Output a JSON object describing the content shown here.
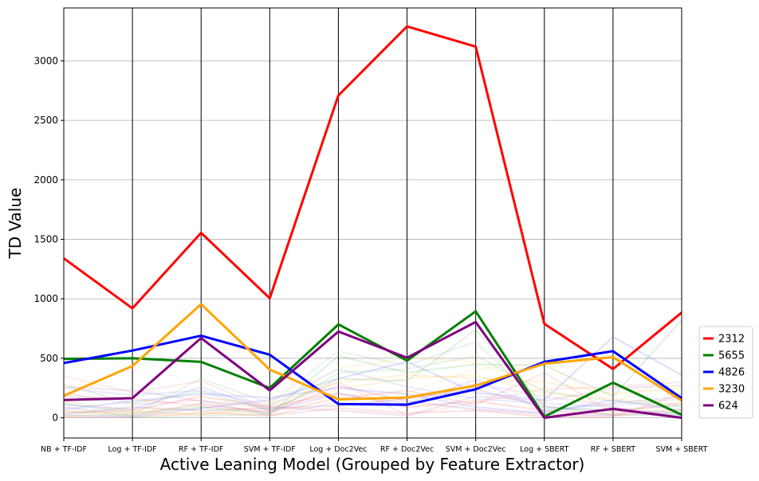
{
  "chart_data": {
    "type": "line",
    "subtype": "parallel-coordinates",
    "title": "",
    "xlabel": "Active Leaning Model (Grouped by Feature Extractor)",
    "ylabel": "TD Value",
    "categories": [
      "NB + TF-IDF",
      "Log + TF-IDF",
      "RF + TF-IDF",
      "SVM + TF-IDF",
      "Log + Doc2Vec",
      "RF + Doc2Vec",
      "SVM + Doc2Vec",
      "Log + SBERT",
      "RF + SBERT",
      "SVM + SBERT"
    ],
    "ylim": [
      -170,
      3445
    ],
    "yticks": [
      0,
      500,
      1000,
      1500,
      2000,
      2500,
      3000
    ],
    "ytick_labels": [
      "0",
      "500",
      "1000",
      "1500",
      "2000",
      "2500",
      "3000"
    ],
    "grid": "horizontal",
    "legend": {
      "position": "right",
      "entries": [
        "2312",
        "5655",
        "4826",
        "3230",
        "624"
      ]
    },
    "series": [
      {
        "name": "2312",
        "color": "#ff0000",
        "values": [
          1340,
          920,
          1555,
          1005,
          2710,
          3290,
          3120,
          790,
          410,
          885
        ]
      },
      {
        "name": "5655",
        "color": "#008000",
        "values": [
          495,
          500,
          470,
          250,
          785,
          480,
          895,
          10,
          295,
          25
        ]
      },
      {
        "name": "4826",
        "color": "#0000ff",
        "values": [
          460,
          565,
          690,
          530,
          115,
          110,
          240,
          470,
          560,
          165
        ]
      },
      {
        "name": "3230",
        "color": "#ffa500",
        "values": [
          185,
          435,
          955,
          405,
          155,
          170,
          270,
          455,
          510,
          145
        ]
      },
      {
        "name": "624",
        "color": "#800080",
        "values": [
          150,
          165,
          670,
          230,
          725,
          505,
          805,
          0,
          75,
          0
        ]
      }
    ],
    "background_series": [
      {
        "color": "#ff6666",
        "values": [
          40,
          60,
          180,
          90,
          210,
          90,
          140,
          60,
          30,
          70
        ]
      },
      {
        "color": "#66bb66",
        "values": [
          120,
          40,
          90,
          30,
          520,
          380,
          450,
          440,
          180,
          820
        ]
      },
      {
        "color": "#6666ff",
        "values": [
          20,
          10,
          80,
          150,
          330,
          470,
          210,
          150,
          680,
          360
        ]
      },
      {
        "color": "#ffcc66",
        "values": [
          60,
          30,
          40,
          60,
          240,
          330,
          360,
          200,
          160,
          110
        ]
      },
      {
        "color": "#bb66bb",
        "values": [
          90,
          20,
          120,
          40,
          270,
          140,
          70,
          30,
          20,
          50
        ]
      },
      {
        "color": "#ff9999",
        "values": [
          350,
          210,
          310,
          70,
          300,
          20,
          130,
          240,
          260,
          300
        ]
      },
      {
        "color": "#99cc99",
        "values": [
          15,
          25,
          330,
          120,
          560,
          440,
          640,
          80,
          60,
          40
        ]
      },
      {
        "color": "#9999ff",
        "values": [
          250,
          190,
          230,
          100,
          410,
          260,
          160,
          120,
          90,
          20
        ]
      },
      {
        "color": "#ffd699",
        "values": [
          10,
          80,
          60,
          10,
          190,
          210,
          410,
          460,
          120,
          380
        ]
      },
      {
        "color": "#cc99cc",
        "values": [
          210,
          110,
          150,
          20,
          130,
          100,
          290,
          180,
          100,
          160
        ]
      },
      {
        "color": "#ff7777",
        "values": [
          5,
          5,
          40,
          20,
          80,
          40,
          60,
          10,
          10,
          200
        ]
      },
      {
        "color": "#77bb77",
        "values": [
          280,
          120,
          220,
          60,
          330,
          310,
          740,
          100,
          20,
          30
        ]
      },
      {
        "color": "#7777ff",
        "values": [
          70,
          140,
          200,
          170,
          250,
          200,
          90,
          40,
          150,
          60
        ]
      },
      {
        "color": "#ffbb55",
        "values": [
          140,
          60,
          20,
          110,
          300,
          360,
          330,
          300,
          200,
          250
        ]
      },
      {
        "color": "#aa77aa",
        "values": [
          30,
          90,
          60,
          80,
          100,
          160,
          240,
          90,
          60,
          110
        ]
      },
      {
        "color": "#ff8888",
        "values": [
          180,
          160,
          100,
          50,
          160,
          230,
          110,
          380,
          40,
          130
        ]
      },
      {
        "color": "#88cc88",
        "values": [
          60,
          10,
          15,
          30,
          380,
          410,
          520,
          220,
          140,
          90
        ]
      },
      {
        "color": "#8888ff",
        "values": [
          110,
          70,
          260,
          60,
          200,
          120,
          320,
          60,
          120,
          180
        ]
      },
      {
        "color": "#ffdd88",
        "values": [
          8,
          40,
          110,
          130,
          420,
          500,
          470,
          240,
          80,
          60
        ]
      },
      {
        "color": "#bb88bb",
        "values": [
          260,
          230,
          140,
          90,
          60,
          20,
          180,
          140,
          250,
          270
        ]
      }
    ]
  }
}
